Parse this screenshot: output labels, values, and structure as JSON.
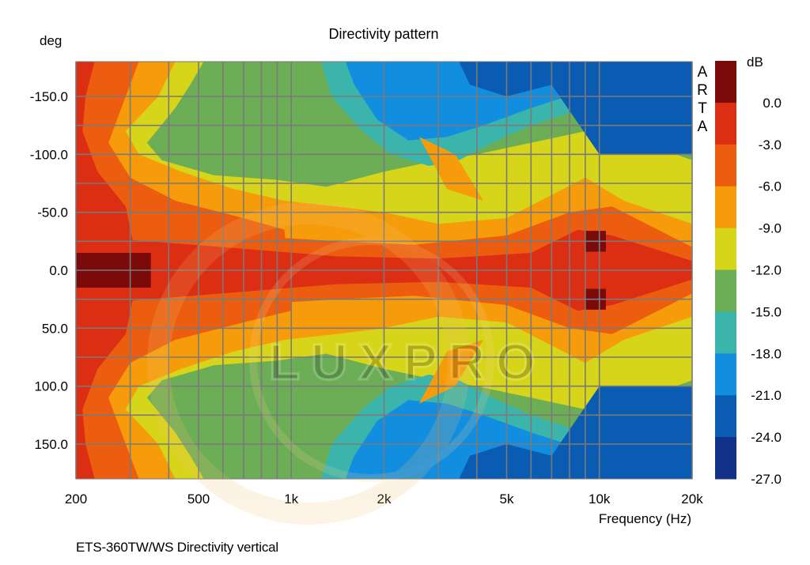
{
  "chart_data": {
    "type": "heatmap",
    "title": "Directivity pattern",
    "xlabel": "Frequency (Hz)",
    "ylabel": "deg",
    "colorbar_label": "dB",
    "x_scale": "log",
    "xlim": [
      200,
      20000
    ],
    "ylim": [
      -180,
      180
    ],
    "y_inverted": true,
    "x_ticks": [
      200,
      500,
      1000,
      2000,
      5000,
      10000,
      20000
    ],
    "x_tick_labels": [
      "200",
      "500",
      "1k",
      "2k",
      "5k",
      "10k",
      "20k"
    ],
    "y_ticks": [
      -150,
      -100,
      -50,
      0,
      50,
      100,
      150
    ],
    "y_tick_labels": [
      "-150.0",
      "-100.0",
      "-50.0",
      "0.0",
      "50.0",
      "100.0",
      "150.0"
    ],
    "x_gridlines": [
      200,
      300,
      400,
      500,
      600,
      700,
      800,
      900,
      1000,
      2000,
      3000,
      4000,
      5000,
      6000,
      7000,
      8000,
      9000,
      10000,
      20000
    ],
    "y_gridlines": [
      -150,
      -125,
      -100,
      -75,
      -50,
      -25,
      0,
      25,
      50,
      75,
      100,
      125,
      150
    ],
    "grid": true,
    "colorbar_levels": [
      3.0,
      0.0,
      -3.0,
      -6.0,
      -9.0,
      -12.0,
      -15.0,
      -18.0,
      -21.0,
      -24.0,
      -27.0
    ],
    "colorbar_tick_labels": [
      "0.0",
      "-3.0",
      "-6.0",
      "-9.0",
      "-12.0",
      "-15.0",
      "-18.0",
      "-21.0",
      "-24.0",
      "-27.0"
    ],
    "colorbar_colors": [
      "#7b0a0a",
      "#dc2e12",
      "#ec5d10",
      "#f69c0b",
      "#d7d51a",
      "#6cae56",
      "#3bb5ac",
      "#128ee0",
      "#0a5bb2",
      "#14318a"
    ],
    "contours": [
      {
        "level": -24,
        "points": [
          [
            350,
            -180
          ],
          [
            330,
            -172
          ],
          [
            290,
            -160
          ],
          [
            240,
            -145
          ],
          [
            210,
            -125
          ],
          [
            200,
            -110
          ],
          [
            200,
            110
          ],
          [
            210,
            125
          ],
          [
            240,
            145
          ],
          [
            290,
            160
          ],
          [
            330,
            172
          ],
          [
            350,
            180
          ]
        ],
        "base": true
      },
      {
        "level": -3,
        "points": [
          [
            200,
            -180
          ],
          [
            200,
            180
          ]
        ]
      }
    ],
    "regions": [
      {
        "level": -3,
        "points": [
          [
            200,
            -180
          ],
          [
            20000,
            -180
          ],
          [
            20000,
            180
          ],
          [
            200,
            180
          ]
        ]
      },
      {
        "level": -6,
        "points": [
          [
            230,
            -180
          ],
          [
            600,
            -180
          ],
          [
            2000,
            -180
          ],
          [
            20000,
            -180
          ],
          [
            20000,
            180
          ],
          [
            2000,
            180
          ],
          [
            600,
            180
          ],
          [
            230,
            180
          ],
          [
            215,
            150
          ],
          [
            210,
            120
          ],
          [
            235,
            85
          ],
          [
            290,
            55
          ],
          [
            320,
            0
          ],
          [
            290,
            -55
          ],
          [
            235,
            -85
          ],
          [
            210,
            -120
          ],
          [
            215,
            -150
          ]
        ]
      },
      {
        "level": -9,
        "points": [
          [
            320,
            -180
          ],
          [
            700,
            -180
          ],
          [
            2000,
            -180
          ],
          [
            20000,
            -180
          ],
          [
            20000,
            180
          ],
          [
            2000,
            180
          ],
          [
            700,
            180
          ],
          [
            320,
            180
          ],
          [
            290,
            150
          ],
          [
            255,
            110
          ],
          [
            300,
            80
          ],
          [
            420,
            60
          ],
          [
            700,
            45
          ],
          [
            1000,
            35
          ],
          [
            950,
            -35
          ],
          [
            700,
            -45
          ],
          [
            420,
            -60
          ],
          [
            300,
            -80
          ],
          [
            255,
            -110
          ],
          [
            290,
            -150
          ]
        ]
      },
      {
        "level": -12,
        "points": [
          [
            420,
            -180
          ],
          [
            800,
            -180
          ],
          [
            2000,
            -180
          ],
          [
            20000,
            -180
          ],
          [
            20000,
            180
          ],
          [
            2000,
            180
          ],
          [
            800,
            180
          ],
          [
            420,
            180
          ],
          [
            370,
            150
          ],
          [
            290,
            120
          ],
          [
            320,
            100
          ],
          [
            440,
            85
          ],
          [
            650,
            70
          ],
          [
            950,
            60
          ],
          [
            1400,
            55
          ],
          [
            2000,
            50
          ],
          [
            3000,
            40
          ],
          [
            5000,
            45
          ],
          [
            7000,
            65
          ],
          [
            9000,
            80
          ],
          [
            12000,
            60
          ],
          [
            20000,
            40
          ],
          [
            20000,
            -40
          ],
          [
            12000,
            -60
          ],
          [
            9000,
            -80
          ],
          [
            7000,
            -65
          ],
          [
            5000,
            -45
          ],
          [
            3000,
            -40
          ],
          [
            2000,
            -50
          ],
          [
            1400,
            -55
          ],
          [
            950,
            -60
          ],
          [
            650,
            -70
          ],
          [
            440,
            -85
          ],
          [
            320,
            -100
          ],
          [
            290,
            -120
          ],
          [
            370,
            -150
          ]
        ]
      },
      {
        "level": -15,
        "points": [
          [
            520,
            -180
          ],
          [
            900,
            -180
          ],
          [
            2000,
            -180
          ],
          [
            20000,
            -180
          ],
          [
            20000,
            180
          ],
          [
            2000,
            180
          ],
          [
            900,
            180
          ],
          [
            520,
            180
          ],
          [
            470,
            160
          ],
          [
            420,
            140
          ],
          [
            340,
            110
          ],
          [
            380,
            95
          ],
          [
            560,
            82
          ],
          [
            900,
            78
          ],
          [
            1300,
            72
          ],
          [
            2000,
            85
          ],
          [
            3000,
            95
          ],
          [
            4000,
            100
          ],
          [
            6000,
            110
          ],
          [
            9000,
            120
          ],
          [
            14000,
            110
          ],
          [
            20000,
            95
          ],
          [
            20000,
            -95
          ],
          [
            14000,
            -110
          ],
          [
            9000,
            -120
          ],
          [
            6000,
            -110
          ],
          [
            4000,
            -100
          ],
          [
            3000,
            -95
          ],
          [
            2000,
            -85
          ],
          [
            1300,
            -72
          ],
          [
            900,
            -78
          ],
          [
            560,
            -82
          ],
          [
            380,
            -95
          ],
          [
            340,
            -110
          ],
          [
            420,
            -140
          ],
          [
            470,
            -160
          ]
        ]
      },
      {
        "level": -18,
        "points": [
          [
            1250,
            -180
          ],
          [
            20000,
            -180
          ],
          [
            20000,
            180
          ],
          [
            1250,
            180
          ],
          [
            1350,
            150
          ],
          [
            1700,
            120
          ],
          [
            2100,
            100
          ],
          [
            2800,
            90
          ],
          [
            3500,
            95
          ],
          [
            4500,
            110
          ],
          [
            6000,
            125
          ],
          [
            9000,
            140
          ],
          [
            14000,
            135
          ],
          [
            20000,
            120
          ],
          [
            20000,
            -120
          ],
          [
            14000,
            -135
          ],
          [
            9000,
            -140
          ],
          [
            6000,
            -125
          ],
          [
            4500,
            -110
          ],
          [
            3500,
            -95
          ],
          [
            2800,
            -90
          ],
          [
            2100,
            -100
          ],
          [
            1700,
            -120
          ],
          [
            1350,
            -150
          ]
        ]
      },
      {
        "level": -21,
        "points": [
          [
            1500,
            -180
          ],
          [
            20000,
            -180
          ],
          [
            20000,
            180
          ],
          [
            1500,
            180
          ],
          [
            1600,
            160
          ],
          [
            1900,
            130
          ],
          [
            2400,
            112
          ],
          [
            3200,
            115
          ],
          [
            4200,
            125
          ],
          [
            6000,
            140
          ],
          [
            9000,
            155
          ],
          [
            14000,
            150
          ],
          [
            20000,
            140
          ],
          [
            20000,
            -140
          ],
          [
            14000,
            -150
          ],
          [
            9000,
            -155
          ],
          [
            6000,
            -140
          ],
          [
            4200,
            -125
          ],
          [
            3200,
            -115
          ],
          [
            2400,
            -112
          ],
          [
            1900,
            -130
          ],
          [
            1600,
            -160
          ]
        ]
      },
      {
        "level": -24,
        "points": [
          [
            3500,
            -180
          ],
          [
            20000,
            -180
          ],
          [
            20000,
            180
          ],
          [
            3500,
            180
          ],
          [
            3800,
            160
          ],
          [
            5000,
            150
          ],
          [
            7000,
            160
          ],
          [
            10000,
            100
          ],
          [
            20000,
            100
          ],
          [
            20000,
            -100
          ],
          [
            10000,
            -100
          ],
          [
            7000,
            -160
          ],
          [
            5000,
            -150
          ],
          [
            3800,
            -160
          ]
        ]
      },
      {
        "level": -9,
        "points": [
          [
            2600,
            -115
          ],
          [
            3400,
            -100
          ],
          [
            4200,
            -60
          ],
          [
            3200,
            -70
          ]
        ]
      },
      {
        "level": -9,
        "points": [
          [
            2600,
            115
          ],
          [
            3400,
            100
          ],
          [
            4200,
            60
          ],
          [
            3200,
            70
          ]
        ]
      },
      {
        "level": -6,
        "points": [
          [
            320,
            -40
          ],
          [
            700,
            -30
          ],
          [
            1400,
            -25
          ],
          [
            2500,
            -22
          ],
          [
            5000,
            -30
          ],
          [
            8000,
            -50
          ],
          [
            11000,
            -55
          ],
          [
            20000,
            -20
          ],
          [
            20000,
            20
          ],
          [
            11000,
            55
          ],
          [
            8000,
            50
          ],
          [
            5000,
            30
          ],
          [
            2500,
            22
          ],
          [
            1400,
            25
          ],
          [
            700,
            30
          ],
          [
            320,
            40
          ]
        ]
      },
      {
        "level": -3,
        "points": [
          [
            200,
            -30
          ],
          [
            600,
            -20
          ],
          [
            1400,
            -12
          ],
          [
            3000,
            -10
          ],
          [
            6000,
            -15
          ],
          [
            8500,
            -35
          ],
          [
            11000,
            -30
          ],
          [
            20000,
            -8
          ],
          [
            20000,
            8
          ],
          [
            11000,
            30
          ],
          [
            8500,
            35
          ],
          [
            6000,
            15
          ],
          [
            3000,
            10
          ],
          [
            1400,
            12
          ],
          [
            600,
            20
          ],
          [
            200,
            30
          ]
        ]
      },
      {
        "level": 0,
        "points": [
          [
            200,
            -15
          ],
          [
            350,
            -15
          ],
          [
            350,
            15
          ],
          [
            200,
            15
          ]
        ]
      },
      {
        "level": 0,
        "points": [
          [
            9000,
            -34
          ],
          [
            10500,
            -34
          ],
          [
            10500,
            -16
          ],
          [
            9000,
            -16
          ]
        ]
      },
      {
        "level": 0,
        "points": [
          [
            9000,
            16
          ],
          [
            10500,
            16
          ],
          [
            10500,
            34
          ],
          [
            9000,
            34
          ]
        ]
      }
    ]
  },
  "footer_text": "ETS-360TW/WS  Directivity vertical",
  "side_label_letters": [
    "A",
    "R",
    "T",
    "A"
  ],
  "watermark_text": "LUXPRO"
}
